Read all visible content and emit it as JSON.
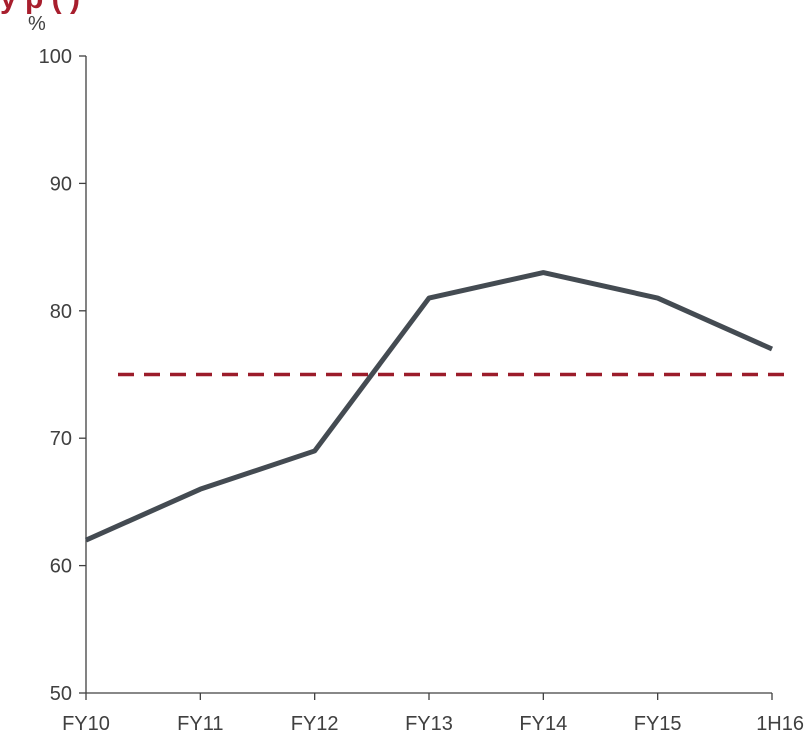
{
  "chart_data": {
    "type": "line",
    "title": "y        p     (       )",
    "ylabel": "%",
    "xlabel": "",
    "categories": [
      "FY10",
      "FY11",
      "FY12",
      "FY13",
      "FY14",
      "FY15",
      "1H16"
    ],
    "series": [
      {
        "values": [
          62,
          66,
          69,
          81,
          83,
          81,
          77
        ]
      }
    ],
    "reference_line": {
      "value": 75,
      "style": "dashed"
    },
    "ylim": [
      50,
      100
    ],
    "yticks": [
      50,
      60,
      70,
      80,
      90,
      100
    ],
    "grid": false,
    "colors": {
      "series": "#444b52",
      "reference": "#9b1c2a",
      "title": "#a81e2d",
      "axis": "#404040"
    }
  }
}
